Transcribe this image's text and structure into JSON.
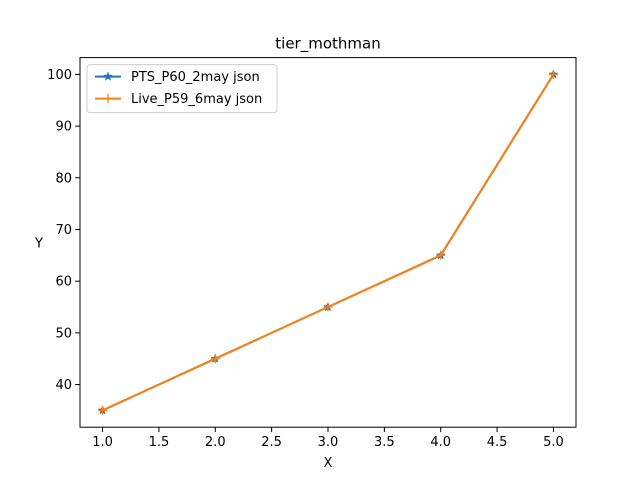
{
  "chart_data": {
    "type": "line",
    "title": "tier_mothman",
    "xlabel": "X",
    "ylabel": "Y",
    "xlim": [
      0.8,
      5.2
    ],
    "ylim": [
      31.75,
      103.25
    ],
    "xticks": [
      1.0,
      1.5,
      2.0,
      2.5,
      3.0,
      3.5,
      4.0,
      4.5,
      5.0
    ],
    "xtick_labels": [
      "1.0",
      "1.5",
      "2.0",
      "2.5",
      "3.0",
      "3.5",
      "4.0",
      "4.5",
      "5.0"
    ],
    "yticks": [
      40,
      50,
      60,
      70,
      80,
      90,
      100
    ],
    "ytick_labels": [
      "40",
      "50",
      "60",
      "70",
      "80",
      "90",
      "100"
    ],
    "grid": false,
    "legend_position": "top-left",
    "x": [
      1,
      2,
      3,
      4,
      5
    ],
    "series": [
      {
        "name": "PTS_P60_2may json",
        "values": [
          35,
          45,
          55,
          65,
          100
        ],
        "color": "#1f77b4",
        "marker": "star"
      },
      {
        "name": "Live_P59_6may json",
        "values": [
          35,
          45,
          55,
          65,
          100
        ],
        "color": "#ff7f0e",
        "marker": "plus"
      }
    ]
  }
}
